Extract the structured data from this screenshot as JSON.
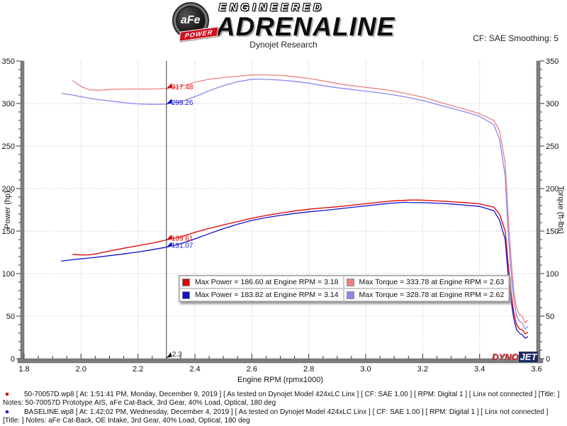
{
  "header": {
    "logo": {
      "afe": "aFe",
      "power": "POWER",
      "reg": "®"
    },
    "brand_top": "ENGINEERED",
    "brand_main": "ADRENALINE",
    "subtitle": "Dynojet Research",
    "cf_smoothing": "CF: SAE Smoothing: 5"
  },
  "watermark": {
    "dyno": "DYNO",
    "jet": "JET"
  },
  "chart_data": {
    "type": "line",
    "title": "Dynojet Research",
    "xlabel": "Engine RPM (rpmx1000)",
    "ylabel_left": "Power (hp)",
    "ylabel_right": "Torque (ft-lbs)",
    "xlim": [
      1.8,
      3.6
    ],
    "ylim": [
      0,
      350
    ],
    "x_major_ticks": [
      1.8,
      2.0,
      2.2,
      2.4,
      2.6,
      2.8,
      3.0,
      3.2,
      3.4,
      3.6
    ],
    "y_major_ticks": [
      0,
      50,
      100,
      150,
      200,
      250,
      300,
      350
    ],
    "x_minor_step": 0.05,
    "y_minor_step": 10,
    "grid": "dotted-major",
    "legend_position": "bottom-center-inside",
    "cursor": {
      "rpm": 2.3,
      "x_label": "2.3",
      "labels": [
        {
          "value": 317.48,
          "text": "317.48",
          "color": "#dd0000"
        },
        {
          "value": 299.26,
          "text": "299.26",
          "color": "#1111cc"
        },
        {
          "value": 139.61,
          "text": "139.61",
          "color": "#dd0000"
        },
        {
          "value": 131.07,
          "text": "131.07",
          "color": "#1111cc"
        }
      ]
    },
    "legend": [
      {
        "color": "#dd0000",
        "label": "Max Power = 186.60 at Engine RPM = 3.18"
      },
      {
        "color": "#ee8080",
        "label": "Max Torque = 333.78 at Engine RPM = 2.63"
      },
      {
        "color": "#1111cc",
        "label": "Max Power = 183.82 at Engine RPM = 3.14"
      },
      {
        "color": "#8888ee",
        "label": "Max Torque = 328.78 at Engine RPM = 2.62"
      }
    ],
    "series": [
      {
        "name": "afe-torque",
        "color": "#ee8080",
        "points": [
          [
            1.97,
            327
          ],
          [
            2.0,
            320
          ],
          [
            2.03,
            316
          ],
          [
            2.06,
            315.5
          ],
          [
            2.1,
            316.5
          ],
          [
            2.15,
            317
          ],
          [
            2.2,
            317
          ],
          [
            2.25,
            317
          ],
          [
            2.3,
            317.48
          ],
          [
            2.35,
            320
          ],
          [
            2.4,
            325
          ],
          [
            2.45,
            328.5
          ],
          [
            2.5,
            330.5
          ],
          [
            2.55,
            332
          ],
          [
            2.6,
            333.5
          ],
          [
            2.63,
            333.78
          ],
          [
            2.7,
            333
          ],
          [
            2.75,
            331.5
          ],
          [
            2.8,
            329.5
          ],
          [
            2.85,
            326.5
          ],
          [
            2.9,
            323.5
          ],
          [
            2.95,
            321
          ],
          [
            3.0,
            319
          ],
          [
            3.05,
            317
          ],
          [
            3.1,
            314.5
          ],
          [
            3.15,
            311
          ],
          [
            3.2,
            307.5
          ],
          [
            3.25,
            302.5
          ],
          [
            3.3,
            297.5
          ],
          [
            3.35,
            293
          ],
          [
            3.4,
            288
          ],
          [
            3.45,
            280
          ],
          [
            3.47,
            268
          ],
          [
            3.49,
            230
          ],
          [
            3.5,
            170
          ],
          [
            3.51,
            120
          ],
          [
            3.52,
            80
          ],
          [
            3.53,
            60
          ],
          [
            3.54,
            52
          ],
          [
            3.55,
            50
          ],
          [
            3.56,
            42
          ],
          [
            3.57,
            45
          ]
        ]
      },
      {
        "name": "baseline-torque",
        "color": "#8888ee",
        "points": [
          [
            1.93,
            312
          ],
          [
            1.97,
            310
          ],
          [
            2.0,
            308
          ],
          [
            2.05,
            305
          ],
          [
            2.1,
            303
          ],
          [
            2.15,
            301
          ],
          [
            2.2,
            299.5
          ],
          [
            2.25,
            299
          ],
          [
            2.3,
            299.26
          ],
          [
            2.35,
            302
          ],
          [
            2.4,
            308
          ],
          [
            2.45,
            315
          ],
          [
            2.5,
            321
          ],
          [
            2.55,
            325.5
          ],
          [
            2.6,
            328.5
          ],
          [
            2.62,
            328.78
          ],
          [
            2.7,
            327.5
          ],
          [
            2.75,
            326
          ],
          [
            2.8,
            324
          ],
          [
            2.85,
            321
          ],
          [
            2.9,
            318.5
          ],
          [
            2.95,
            316.5
          ],
          [
            3.0,
            314.5
          ],
          [
            3.05,
            312.5
          ],
          [
            3.1,
            310
          ],
          [
            3.15,
            307
          ],
          [
            3.2,
            303.5
          ],
          [
            3.25,
            299
          ],
          [
            3.3,
            294.5
          ],
          [
            3.35,
            290
          ],
          [
            3.4,
            285
          ],
          [
            3.45,
            275
          ],
          [
            3.47,
            258
          ],
          [
            3.49,
            215
          ],
          [
            3.5,
            150
          ],
          [
            3.51,
            105
          ],
          [
            3.52,
            70
          ],
          [
            3.53,
            50
          ],
          [
            3.54,
            44
          ],
          [
            3.55,
            42
          ],
          [
            3.56,
            35
          ],
          [
            3.57,
            38
          ]
        ]
      },
      {
        "name": "afe-power",
        "color": "#dd0000",
        "points": [
          [
            1.97,
            122.7
          ],
          [
            2.0,
            121.9
          ],
          [
            2.03,
            122.1
          ],
          [
            2.06,
            123.7
          ],
          [
            2.1,
            126.6
          ],
          [
            2.15,
            129.8
          ],
          [
            2.2,
            132.8
          ],
          [
            2.25,
            135.8
          ],
          [
            2.3,
            139.6
          ],
          [
            2.35,
            143.2
          ],
          [
            2.4,
            148.5
          ],
          [
            2.45,
            153.2
          ],
          [
            2.5,
            157.3
          ],
          [
            2.55,
            161.2
          ],
          [
            2.6,
            165.1
          ],
          [
            2.65,
            168.3
          ],
          [
            2.7,
            171.2
          ],
          [
            2.75,
            173.6
          ],
          [
            2.8,
            175.7
          ],
          [
            2.85,
            177.2
          ],
          [
            2.9,
            178.6
          ],
          [
            2.95,
            180.3
          ],
          [
            3.0,
            182.2
          ],
          [
            3.05,
            184.1
          ],
          [
            3.1,
            185.6
          ],
          [
            3.15,
            186.4
          ],
          [
            3.18,
            186.6
          ],
          [
            3.2,
            186.3
          ],
          [
            3.25,
            185.5
          ],
          [
            3.3,
            184.5
          ],
          [
            3.35,
            183.5
          ],
          [
            3.4,
            182
          ],
          [
            3.45,
            178
          ],
          [
            3.47,
            170
          ],
          [
            3.49,
            150
          ],
          [
            3.5,
            113
          ],
          [
            3.51,
            80
          ],
          [
            3.52,
            54
          ],
          [
            3.53,
            40
          ],
          [
            3.54,
            35
          ],
          [
            3.55,
            34
          ],
          [
            3.56,
            29
          ],
          [
            3.57,
            31
          ]
        ]
      },
      {
        "name": "baseline-power",
        "color": "#1111cc",
        "points": [
          [
            1.93,
            114.7
          ],
          [
            1.97,
            116.3
          ],
          [
            2.0,
            117.3
          ],
          [
            2.05,
            119.1
          ],
          [
            2.1,
            121.1
          ],
          [
            2.15,
            123.2
          ],
          [
            2.2,
            125.4
          ],
          [
            2.25,
            128.1
          ],
          [
            2.3,
            131.1
          ],
          [
            2.35,
            135.1
          ],
          [
            2.4,
            140.8
          ],
          [
            2.45,
            146.9
          ],
          [
            2.5,
            152.8
          ],
          [
            2.55,
            158
          ],
          [
            2.6,
            162.6
          ],
          [
            2.65,
            165.8
          ],
          [
            2.7,
            168.4
          ],
          [
            2.75,
            170.7
          ],
          [
            2.8,
            172.7
          ],
          [
            2.85,
            174.2
          ],
          [
            2.9,
            175.9
          ],
          [
            2.95,
            177.8
          ],
          [
            3.0,
            179.6
          ],
          [
            3.05,
            181.5
          ],
          [
            3.1,
            183
          ],
          [
            3.14,
            183.82
          ],
          [
            3.15,
            183.7
          ],
          [
            3.2,
            183.4
          ],
          [
            3.25,
            182.8
          ],
          [
            3.3,
            181.8
          ],
          [
            3.35,
            180.5
          ],
          [
            3.4,
            179
          ],
          [
            3.45,
            174
          ],
          [
            3.47,
            163
          ],
          [
            3.49,
            140
          ],
          [
            3.5,
            100
          ],
          [
            3.51,
            70
          ],
          [
            3.52,
            47
          ],
          [
            3.53,
            34
          ],
          [
            3.54,
            30
          ],
          [
            3.55,
            28
          ],
          [
            3.56,
            24
          ],
          [
            3.57,
            26
          ]
        ]
      }
    ]
  },
  "footer": {
    "notes": [
      {
        "color": "#cc0000",
        "text": "50-70057D.wp8 [ At: 1:51:41 PM, Monday, December 9, 2019 ] [ As tested on Dynojet Model 424xLC Linx ] [ CF: SAE 1.00 ] [ RPM: Digital 1 ] [ Linx not connected ] [Title: ]  Notes: 50-70057D Prototype AIS, aFe Cat-Back, 3rd Gear, 40% Load, Optical, 180 deg"
      },
      {
        "color": "#2222cc",
        "text": "BASELINE.wp8 [ At: 1:42:02 PM, Wednesday, December 4, 2019 ] [ As tested on Dynojet Model 424xLC Linx ] [ CF: SAE 1.00 ] [ RPM: Digital 1 ] [ Linx not connected ] [Title: ]  Notes: aFe Cat-Back, OE Intake, 3rd Gear, 40% Load, Optical, 180 deg"
      }
    ]
  }
}
